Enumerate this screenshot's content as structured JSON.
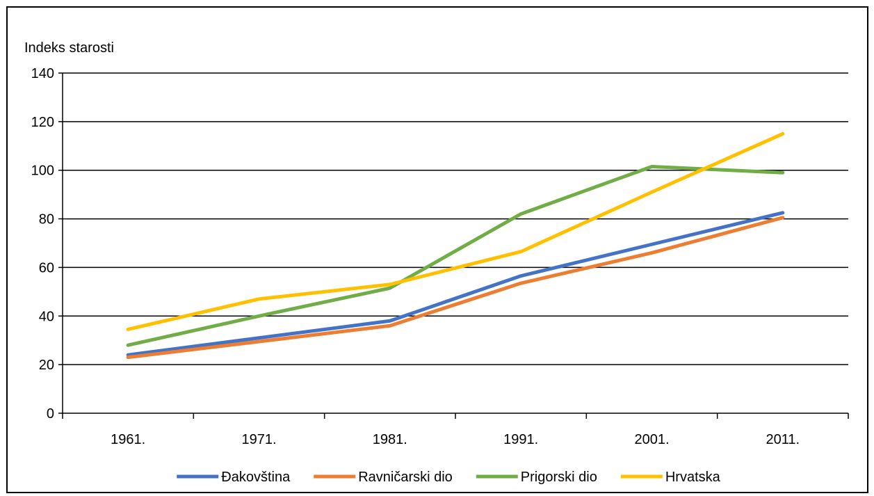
{
  "chart_data": {
    "type": "line",
    "title": "",
    "ylabel": "Indeks starosti",
    "xlabel": "",
    "categories": [
      "1961.",
      "1971.",
      "1981.",
      "1991.",
      "2001.",
      "2011."
    ],
    "ylim": [
      0,
      140
    ],
    "yticks": [
      0,
      20,
      40,
      60,
      80,
      100,
      120,
      140
    ],
    "grid": "horizontal",
    "legend_position": "bottom",
    "series": [
      {
        "name": "Đakovština",
        "color": "#4472C4",
        "values": [
          24,
          31,
          38,
          56.5,
          69.5,
          82.5
        ]
      },
      {
        "name": "Ravničarski dio",
        "color": "#ED7D31",
        "values": [
          23,
          29.5,
          36,
          53.5,
          66,
          80.5
        ]
      },
      {
        "name": "Prigorski dio",
        "color": "#70AD47",
        "values": [
          28,
          40,
          51.5,
          82,
          101.5,
          99
        ]
      },
      {
        "name": "Hrvatska",
        "color": "#FFC000",
        "values": [
          34.5,
          47,
          53,
          66.5,
          91,
          115
        ]
      }
    ]
  }
}
